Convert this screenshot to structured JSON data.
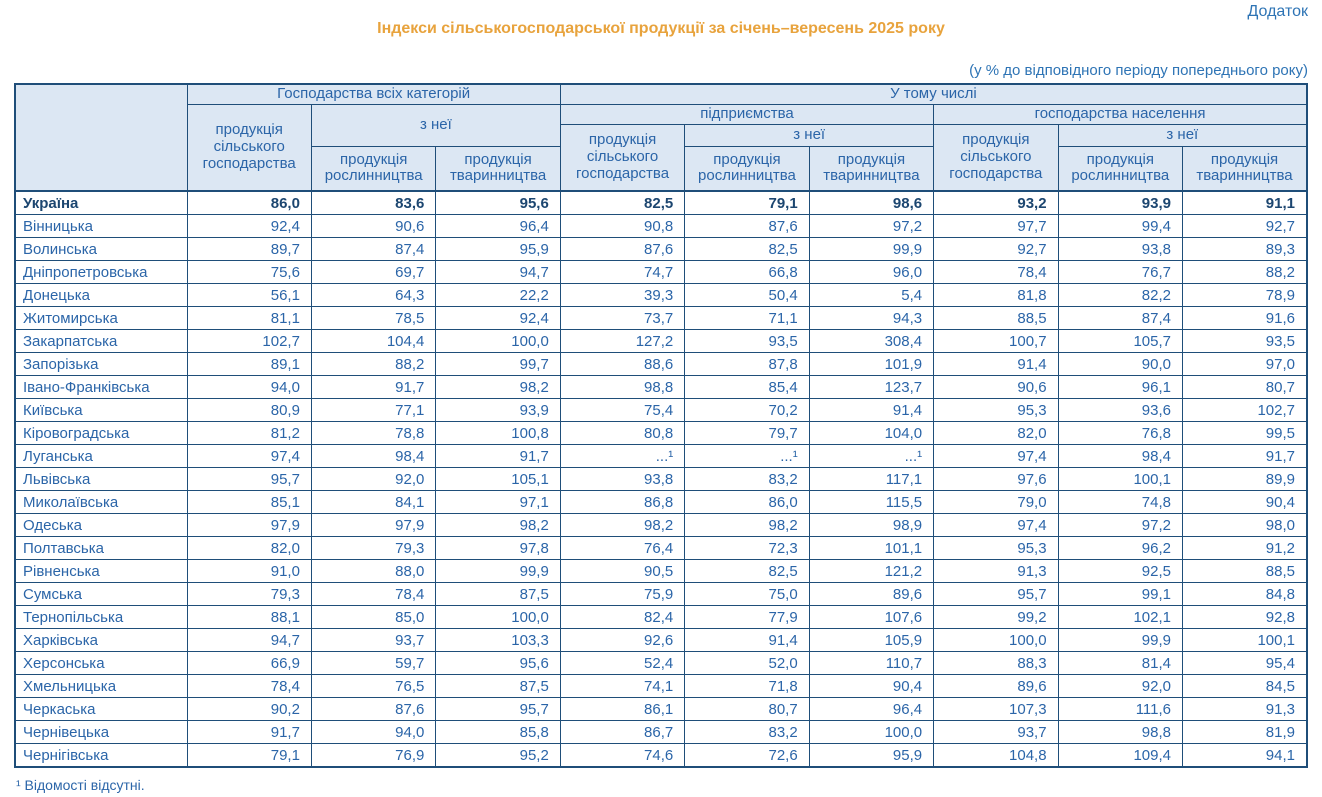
{
  "page": {
    "appendix_label": "Додаток",
    "title": "Індекси сільськогосподарської продукції за січень–вересень 2025 року",
    "subtitle": "(у % до відповідного періоду попереднього року)",
    "footnote": "¹ Відомості відсутні."
  },
  "colors": {
    "title_orange": "#E8A33D",
    "text_blue": "#2B65A8",
    "bold_navy": "#1C4670",
    "border_navy": "#1F4E79",
    "header_bg": "#DCE7F3"
  },
  "table": {
    "header": {
      "all_categories": "Господарства всіх категорій",
      "including": "У тому числі",
      "enterprises": "підприємства",
      "households": "господарства населення",
      "agri_production": "продукція сільського господарства",
      "of_which": "з неї",
      "crop_production": "продукція рослинництва",
      "livestock_production": "продукція тваринництва"
    },
    "rows": [
      {
        "region": "Україна",
        "bold": true,
        "values": [
          "86,0",
          "83,6",
          "95,6",
          "82,5",
          "79,1",
          "98,6",
          "93,2",
          "93,9",
          "91,1"
        ]
      },
      {
        "region": "Вінницька",
        "bold": false,
        "values": [
          "92,4",
          "90,6",
          "96,4",
          "90,8",
          "87,6",
          "97,2",
          "97,7",
          "99,4",
          "92,7"
        ]
      },
      {
        "region": "Волинська",
        "bold": false,
        "values": [
          "89,7",
          "87,4",
          "95,9",
          "87,6",
          "82,5",
          "99,9",
          "92,7",
          "93,8",
          "89,3"
        ]
      },
      {
        "region": "Дніпропетровська",
        "bold": false,
        "values": [
          "75,6",
          "69,7",
          "94,7",
          "74,7",
          "66,8",
          "96,0",
          "78,4",
          "76,7",
          "88,2"
        ]
      },
      {
        "region": "Донецька",
        "bold": false,
        "values": [
          "56,1",
          "64,3",
          "22,2",
          "39,3",
          "50,4",
          "5,4",
          "81,8",
          "82,2",
          "78,9"
        ]
      },
      {
        "region": "Житомирська",
        "bold": false,
        "values": [
          "81,1",
          "78,5",
          "92,4",
          "73,7",
          "71,1",
          "94,3",
          "88,5",
          "87,4",
          "91,6"
        ]
      },
      {
        "region": "Закарпатська",
        "bold": false,
        "values": [
          "102,7",
          "104,4",
          "100,0",
          "127,2",
          "93,5",
          "308,4",
          "100,7",
          "105,7",
          "93,5"
        ]
      },
      {
        "region": "Запорізька",
        "bold": false,
        "values": [
          "89,1",
          "88,2",
          "99,7",
          "88,6",
          "87,8",
          "101,9",
          "91,4",
          "90,0",
          "97,0"
        ]
      },
      {
        "region": "Івано-Франківська",
        "bold": false,
        "values": [
          "94,0",
          "91,7",
          "98,2",
          "98,8",
          "85,4",
          "123,7",
          "90,6",
          "96,1",
          "80,7"
        ]
      },
      {
        "region": "Київська",
        "bold": false,
        "values": [
          "80,9",
          "77,1",
          "93,9",
          "75,4",
          "70,2",
          "91,4",
          "95,3",
          "93,6",
          "102,7"
        ]
      },
      {
        "region": "Кіровоградська",
        "bold": false,
        "values": [
          "81,2",
          "78,8",
          "100,8",
          "80,8",
          "79,7",
          "104,0",
          "82,0",
          "76,8",
          "99,5"
        ]
      },
      {
        "region": "Луганська",
        "bold": false,
        "values": [
          "97,4",
          "98,4",
          "91,7",
          "...¹",
          "...¹",
          "...¹",
          "97,4",
          "98,4",
          "91,7"
        ]
      },
      {
        "region": "Львівська",
        "bold": false,
        "values": [
          "95,7",
          "92,0",
          "105,1",
          "93,8",
          "83,2",
          "117,1",
          "97,6",
          "100,1",
          "89,9"
        ]
      },
      {
        "region": "Миколаївська",
        "bold": false,
        "values": [
          "85,1",
          "84,1",
          "97,1",
          "86,8",
          "86,0",
          "115,5",
          "79,0",
          "74,8",
          "90,4"
        ]
      },
      {
        "region": "Одеська",
        "bold": false,
        "values": [
          "97,9",
          "97,9",
          "98,2",
          "98,2",
          "98,2",
          "98,9",
          "97,4",
          "97,2",
          "98,0"
        ]
      },
      {
        "region": "Полтавська",
        "bold": false,
        "values": [
          "82,0",
          "79,3",
          "97,8",
          "76,4",
          "72,3",
          "101,1",
          "95,3",
          "96,2",
          "91,2"
        ]
      },
      {
        "region": "Рівненська",
        "bold": false,
        "values": [
          "91,0",
          "88,0",
          "99,9",
          "90,5",
          "82,5",
          "121,2",
          "91,3",
          "92,5",
          "88,5"
        ]
      },
      {
        "region": "Сумська",
        "bold": false,
        "values": [
          "79,3",
          "78,4",
          "87,5",
          "75,9",
          "75,0",
          "89,6",
          "95,7",
          "99,1",
          "84,8"
        ]
      },
      {
        "region": "Тернопільська",
        "bold": false,
        "values": [
          "88,1",
          "85,0",
          "100,0",
          "82,4",
          "77,9",
          "107,6",
          "99,2",
          "102,1",
          "92,8"
        ]
      },
      {
        "region": "Харківська",
        "bold": false,
        "values": [
          "94,7",
          "93,7",
          "103,3",
          "92,6",
          "91,4",
          "105,9",
          "100,0",
          "99,9",
          "100,1"
        ]
      },
      {
        "region": "Херсонська",
        "bold": false,
        "values": [
          "66,9",
          "59,7",
          "95,6",
          "52,4",
          "52,0",
          "110,7",
          "88,3",
          "81,4",
          "95,4"
        ]
      },
      {
        "region": "Хмельницька",
        "bold": false,
        "values": [
          "78,4",
          "76,5",
          "87,5",
          "74,1",
          "71,8",
          "90,4",
          "89,6",
          "92,0",
          "84,5"
        ]
      },
      {
        "region": "Черкаська",
        "bold": false,
        "values": [
          "90,2",
          "87,6",
          "95,7",
          "86,1",
          "80,7",
          "96,4",
          "107,3",
          "111,6",
          "91,3"
        ]
      },
      {
        "region": "Чернівецька",
        "bold": false,
        "values": [
          "91,7",
          "94,0",
          "85,8",
          "86,7",
          "83,2",
          "100,0",
          "93,7",
          "98,8",
          "81,9"
        ]
      },
      {
        "region": "Чернігівська",
        "bold": false,
        "values": [
          "79,1",
          "76,9",
          "95,2",
          "74,6",
          "72,6",
          "95,9",
          "104,8",
          "109,4",
          "94,1"
        ]
      }
    ]
  }
}
